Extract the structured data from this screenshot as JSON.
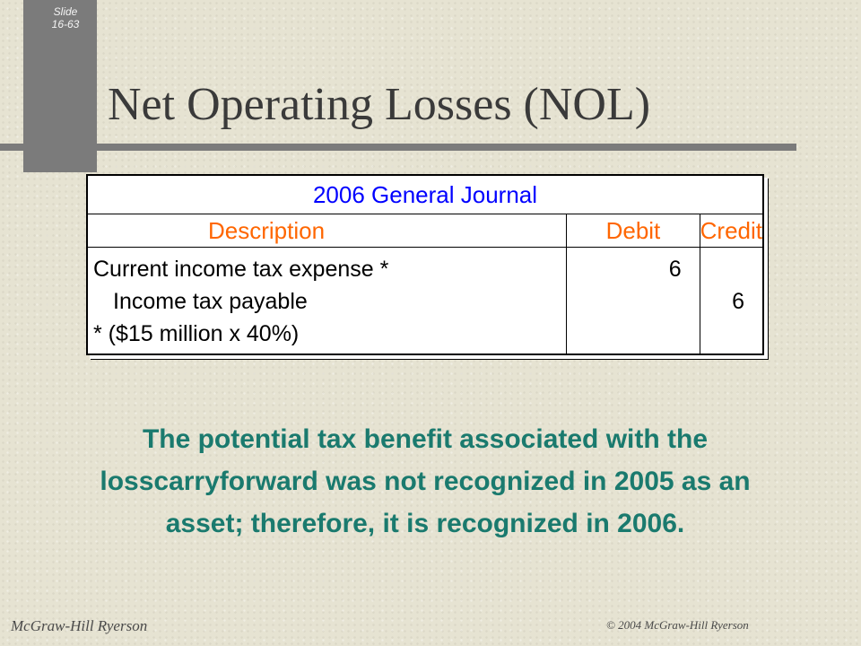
{
  "slide": {
    "label": "Slide",
    "number": "16-63"
  },
  "title": "Net Operating Losses (NOL)",
  "journal": {
    "title": "2006 General Journal",
    "columns": [
      "Description",
      "Debit",
      "Credit"
    ],
    "rows": [
      {
        "description": "Current income tax expense *",
        "debit": "6",
        "credit": ""
      },
      {
        "description": "Income tax payable",
        "debit": "",
        "credit": "6"
      },
      {
        "description": "* ($15 million x 40%)",
        "debit": "",
        "credit": ""
      }
    ]
  },
  "body_text": "The potential tax benefit associated with the losscarryforward was not recognized in 2005 as an asset; therefore, it is recognized in 2006.",
  "footer": {
    "left": "McGraw-Hill Ryerson",
    "right": "© 2004 McGraw-Hill Ryerson"
  },
  "colors": {
    "title": "#3a3a3a",
    "journal_title": "#0000ff",
    "column_headers": "#ff6600",
    "body_text": "#1a7a6e",
    "accent_bar": "#7b7b7b"
  }
}
